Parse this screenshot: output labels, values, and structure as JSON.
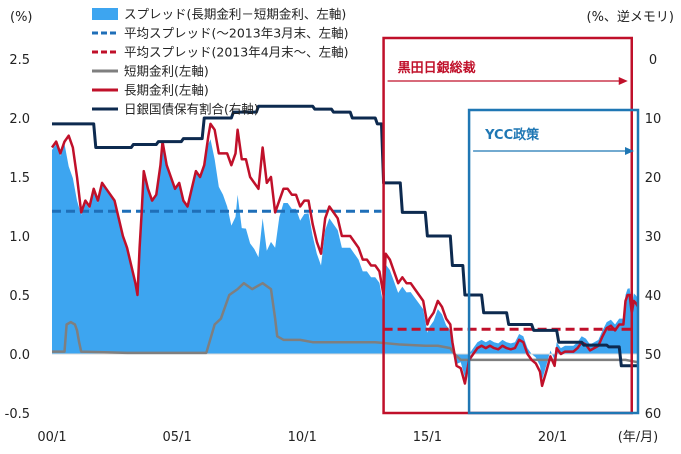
{
  "chart_data": {
    "type": "area",
    "left_axis_unit": "(%)",
    "right_axis_unit": "(%、逆メモリ)",
    "x_axis_unit": "(年/月)",
    "x_ticks": [
      "00/1",
      "05/1",
      "10/1",
      "15/1",
      "20/1"
    ],
    "y_left_ticks": [
      "2.5",
      "2.0",
      "1.5",
      "1.0",
      "0.5",
      "0.0",
      "-0.5"
    ],
    "y_right_ticks": [
      "0",
      "10",
      "20",
      "30",
      "40",
      "50",
      "60"
    ],
    "y_left_range": [
      -0.5,
      2.5
    ],
    "y_right_range": [
      0,
      60
    ],
    "y_right_inverted": true,
    "x_range": [
      "2000-01",
      "2023-06"
    ],
    "legend": [
      {
        "name": "スプレッド(長期金利－短期金利、左軸)",
        "style": "area",
        "color": "#3da5f0"
      },
      {
        "name": "平均スプレッド(～2013年3月末、左軸)",
        "style": "dashed",
        "color": "#1f6fb8"
      },
      {
        "name": "平均スプレッド(2013年4月末～、左軸)",
        "style": "dashed",
        "color": "#c0102a"
      },
      {
        "name": "短期金利(左軸)",
        "style": "line",
        "color": "#7f7f7f"
      },
      {
        "name": "長期金利(左軸)",
        "style": "line",
        "color": "#c0102a"
      },
      {
        "name": "日銀国債保有割合(右軸)",
        "style": "line",
        "color": "#0d2a4f"
      }
    ],
    "annotations": [
      {
        "label": "黒田日銀総裁",
        "start": "2013-04",
        "end": "2023-03",
        "color": "#c0102a"
      },
      {
        "label": "YCC政策",
        "start": "2016-09",
        "end": "2023-06",
        "color": "#1f77b4"
      }
    ],
    "avg_spread_pre": {
      "start": "2000-01",
      "end": "2013-03",
      "value": 1.21
    },
    "avg_spread_post": {
      "start": "2013-04",
      "end": "2023-03",
      "value": 0.21
    },
    "long_rate": [
      [
        "2000-01",
        1.75
      ],
      [
        "2000-03",
        1.8
      ],
      [
        "2000-05",
        1.7
      ],
      [
        "2000-07",
        1.8
      ],
      [
        "2000-09",
        1.85
      ],
      [
        "2000-11",
        1.75
      ],
      [
        "2001-01",
        1.5
      ],
      [
        "2001-03",
        1.2
      ],
      [
        "2001-05",
        1.3
      ],
      [
        "2001-07",
        1.25
      ],
      [
        "2001-09",
        1.4
      ],
      [
        "2001-11",
        1.3
      ],
      [
        "2002-01",
        1.45
      ],
      [
        "2002-03",
        1.4
      ],
      [
        "2002-05",
        1.35
      ],
      [
        "2002-07",
        1.3
      ],
      [
        "2002-09",
        1.15
      ],
      [
        "2002-11",
        1.0
      ],
      [
        "2003-01",
        0.9
      ],
      [
        "2003-03",
        0.75
      ],
      [
        "2003-05",
        0.6
      ],
      [
        "2003-06",
        0.5
      ],
      [
        "2003-07",
        0.9
      ],
      [
        "2003-08",
        1.2
      ],
      [
        "2003-09",
        1.55
      ],
      [
        "2003-11",
        1.4
      ],
      [
        "2004-01",
        1.3
      ],
      [
        "2004-03",
        1.35
      ],
      [
        "2004-05",
        1.6
      ],
      [
        "2004-06",
        1.8
      ],
      [
        "2004-08",
        1.6
      ],
      [
        "2004-10",
        1.5
      ],
      [
        "2004-12",
        1.4
      ],
      [
        "2005-02",
        1.45
      ],
      [
        "2005-04",
        1.3
      ],
      [
        "2005-06",
        1.25
      ],
      [
        "2005-08",
        1.4
      ],
      [
        "2005-10",
        1.55
      ],
      [
        "2005-12",
        1.5
      ],
      [
        "2006-02",
        1.6
      ],
      [
        "2006-04",
        1.85
      ],
      [
        "2006-05",
        1.95
      ],
      [
        "2006-07",
        1.9
      ],
      [
        "2006-09",
        1.7
      ],
      [
        "2006-11",
        1.7
      ],
      [
        "2007-01",
        1.7
      ],
      [
        "2007-03",
        1.6
      ],
      [
        "2007-05",
        1.7
      ],
      [
        "2007-06",
        1.9
      ],
      [
        "2007-08",
        1.65
      ],
      [
        "2007-10",
        1.65
      ],
      [
        "2007-12",
        1.5
      ],
      [
        "2008-02",
        1.45
      ],
      [
        "2008-04",
        1.4
      ],
      [
        "2008-06",
        1.75
      ],
      [
        "2008-08",
        1.45
      ],
      [
        "2008-10",
        1.5
      ],
      [
        "2008-12",
        1.2
      ],
      [
        "2009-02",
        1.3
      ],
      [
        "2009-04",
        1.4
      ],
      [
        "2009-06",
        1.4
      ],
      [
        "2009-08",
        1.35
      ],
      [
        "2009-10",
        1.35
      ],
      [
        "2009-12",
        1.25
      ],
      [
        "2010-02",
        1.3
      ],
      [
        "2010-04",
        1.3
      ],
      [
        "2010-06",
        1.1
      ],
      [
        "2010-08",
        0.95
      ],
      [
        "2010-10",
        0.85
      ],
      [
        "2010-12",
        1.15
      ],
      [
        "2011-02",
        1.25
      ],
      [
        "2011-04",
        1.2
      ],
      [
        "2011-06",
        1.15
      ],
      [
        "2011-08",
        1.0
      ],
      [
        "2011-10",
        1.0
      ],
      [
        "2011-12",
        1.0
      ],
      [
        "2012-02",
        0.95
      ],
      [
        "2012-04",
        0.9
      ],
      [
        "2012-06",
        0.8
      ],
      [
        "2012-08",
        0.8
      ],
      [
        "2012-10",
        0.75
      ],
      [
        "2012-12",
        0.75
      ],
      [
        "2013-02",
        0.7
      ],
      [
        "2013-04",
        0.5
      ],
      [
        "2013-05",
        0.85
      ],
      [
        "2013-07",
        0.8
      ],
      [
        "2013-09",
        0.7
      ],
      [
        "2013-11",
        0.6
      ],
      [
        "2014-01",
        0.65
      ],
      [
        "2014-03",
        0.6
      ],
      [
        "2014-05",
        0.6
      ],
      [
        "2014-07",
        0.55
      ],
      [
        "2014-09",
        0.5
      ],
      [
        "2014-11",
        0.45
      ],
      [
        "2015-01",
        0.25
      ],
      [
        "2015-02",
        0.3
      ],
      [
        "2015-04",
        0.35
      ],
      [
        "2015-06",
        0.45
      ],
      [
        "2015-08",
        0.4
      ],
      [
        "2015-10",
        0.3
      ],
      [
        "2015-12",
        0.25
      ],
      [
        "2016-01",
        0.1
      ],
      [
        "2016-03",
        -0.1
      ],
      [
        "2016-05",
        -0.12
      ],
      [
        "2016-07",
        -0.25
      ],
      [
        "2016-09",
        -0.05
      ],
      [
        "2016-11",
        0.0
      ],
      [
        "2017-01",
        0.05
      ],
      [
        "2017-03",
        0.07
      ],
      [
        "2017-05",
        0.05
      ],
      [
        "2017-07",
        0.07
      ],
      [
        "2017-09",
        0.05
      ],
      [
        "2017-11",
        0.04
      ],
      [
        "2018-01",
        0.07
      ],
      [
        "2018-03",
        0.05
      ],
      [
        "2018-05",
        0.04
      ],
      [
        "2018-07",
        0.05
      ],
      [
        "2018-09",
        0.12
      ],
      [
        "2018-11",
        0.1
      ],
      [
        "2019-01",
        0.0
      ],
      [
        "2019-03",
        -0.05
      ],
      [
        "2019-05",
        -0.08
      ],
      [
        "2019-07",
        -0.15
      ],
      [
        "2019-08",
        -0.27
      ],
      [
        "2019-10",
        -0.15
      ],
      [
        "2019-12",
        -0.02
      ],
      [
        "2020-02",
        -0.1
      ],
      [
        "2020-03",
        0.05
      ],
      [
        "2020-05",
        0.0
      ],
      [
        "2020-07",
        0.02
      ],
      [
        "2020-09",
        0.02
      ],
      [
        "2020-11",
        0.02
      ],
      [
        "2021-01",
        0.05
      ],
      [
        "2021-03",
        0.1
      ],
      [
        "2021-05",
        0.08
      ],
      [
        "2021-07",
        0.03
      ],
      [
        "2021-09",
        0.05
      ],
      [
        "2021-11",
        0.07
      ],
      [
        "2022-01",
        0.15
      ],
      [
        "2022-03",
        0.22
      ],
      [
        "2022-05",
        0.24
      ],
      [
        "2022-07",
        0.2
      ],
      [
        "2022-09",
        0.25
      ],
      [
        "2022-11",
        0.25
      ],
      [
        "2022-12",
        0.45
      ],
      [
        "2023-01",
        0.5
      ],
      [
        "2023-02",
        0.5
      ],
      [
        "2023-03",
        0.35
      ],
      [
        "2023-04",
        0.45
      ],
      [
        "2023-05",
        0.43
      ],
      [
        "2023-06",
        0.4
      ]
    ],
    "short_rate": [
      [
        "2000-01",
        0.02
      ],
      [
        "2000-07",
        0.02
      ],
      [
        "2000-08",
        0.25
      ],
      [
        "2000-10",
        0.27
      ],
      [
        "2000-12",
        0.25
      ],
      [
        "2001-01",
        0.2
      ],
      [
        "2001-02",
        0.1
      ],
      [
        "2001-03",
        0.02
      ],
      [
        "2003-01",
        0.01
      ],
      [
        "2006-03",
        0.01
      ],
      [
        "2006-07",
        0.25
      ],
      [
        "2006-10",
        0.3
      ],
      [
        "2007-02",
        0.5
      ],
      [
        "2007-06",
        0.55
      ],
      [
        "2007-09",
        0.6
      ],
      [
        "2008-01",
        0.55
      ],
      [
        "2008-06",
        0.6
      ],
      [
        "2008-10",
        0.55
      ],
      [
        "2008-12",
        0.3
      ],
      [
        "2009-01",
        0.15
      ],
      [
        "2009-04",
        0.12
      ],
      [
        "2009-12",
        0.12
      ],
      [
        "2010-06",
        0.1
      ],
      [
        "2010-12",
        0.1
      ],
      [
        "2012-12",
        0.1
      ],
      [
        "2013-12",
        0.08
      ],
      [
        "2014-12",
        0.07
      ],
      [
        "2015-06",
        0.07
      ],
      [
        "2015-12",
        0.05
      ],
      [
        "2016-02",
        0.0
      ],
      [
        "2016-05",
        -0.05
      ],
      [
        "2016-09",
        -0.05
      ],
      [
        "2017-12",
        -0.05
      ],
      [
        "2018-12",
        -0.05
      ],
      [
        "2019-12",
        -0.05
      ],
      [
        "2020-12",
        -0.05
      ],
      [
        "2021-12",
        -0.05
      ],
      [
        "2022-12",
        -0.05
      ],
      [
        "2023-06",
        -0.07
      ]
    ],
    "boj_holding_ratio": [
      [
        "2000-01",
        11
      ],
      [
        "2001-09",
        11
      ],
      [
        "2001-10",
        15
      ],
      [
        "2003-03",
        15
      ],
      [
        "2003-04",
        14.5
      ],
      [
        "2004-03",
        14.5
      ],
      [
        "2004-04",
        14
      ],
      [
        "2005-03",
        14
      ],
      [
        "2005-04",
        13.5
      ],
      [
        "2006-01",
        13.5
      ],
      [
        "2006-02",
        10
      ],
      [
        "2007-03",
        10
      ],
      [
        "2007-04",
        9
      ],
      [
        "2008-03",
        9
      ],
      [
        "2008-04",
        8
      ],
      [
        "2010-06",
        8
      ],
      [
        "2010-07",
        8.5
      ],
      [
        "2011-03",
        8.5
      ],
      [
        "2011-04",
        9
      ],
      [
        "2011-12",
        9
      ],
      [
        "2012-01",
        10
      ],
      [
        "2012-12",
        10
      ],
      [
        "2013-01",
        11
      ],
      [
        "2013-03",
        11
      ],
      [
        "2013-04",
        21
      ],
      [
        "2013-12",
        21
      ],
      [
        "2014-01",
        26
      ],
      [
        "2014-12",
        26
      ],
      [
        "2015-01",
        30
      ],
      [
        "2015-12",
        30
      ],
      [
        "2016-01",
        35
      ],
      [
        "2016-06",
        35
      ],
      [
        "2016-07",
        40
      ],
      [
        "2017-03",
        40
      ],
      [
        "2017-04",
        43
      ],
      [
        "2018-03",
        43
      ],
      [
        "2018-04",
        45
      ],
      [
        "2019-03",
        45
      ],
      [
        "2019-04",
        46
      ],
      [
        "2020-03",
        46
      ],
      [
        "2020-04",
        48
      ],
      [
        "2021-03",
        48
      ],
      [
        "2021-04",
        48.5
      ],
      [
        "2022-03",
        48.5
      ],
      [
        "2022-04",
        48.8
      ],
      [
        "2022-09",
        48.8
      ],
      [
        "2022-10",
        52
      ],
      [
        "2023-06",
        52
      ]
    ]
  }
}
